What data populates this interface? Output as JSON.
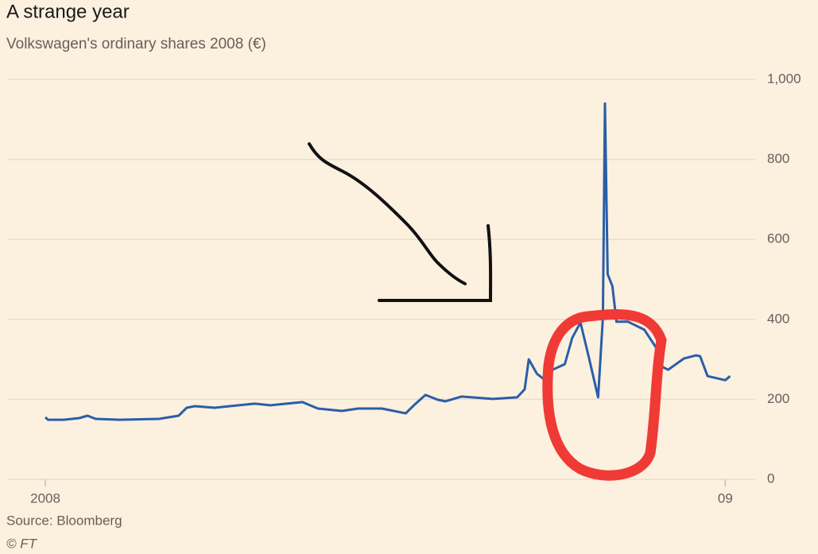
{
  "chart_data": {
    "type": "line",
    "title": "A strange year",
    "subtitle": "Volkswagen's ordinary shares 2008 (€)",
    "source": "Source: Bloomberg",
    "credit": "© FT",
    "x": [
      2008.0,
      2008.004,
      2008.027,
      2008.05,
      2008.062,
      2008.074,
      2008.109,
      2008.167,
      2008.196,
      2008.208,
      2008.22,
      2008.249,
      2008.284,
      2008.308,
      2008.331,
      2008.378,
      2008.401,
      2008.436,
      2008.46,
      2008.495,
      2008.53,
      2008.542,
      2008.559,
      2008.577,
      2008.588,
      2008.612,
      2008.658,
      2008.694,
      2008.705,
      2008.711,
      2008.723,
      2008.735,
      2008.746,
      2008.764,
      2008.775,
      2008.787,
      2008.799,
      2008.813,
      2008.82,
      2008.823,
      2008.827,
      2008.834,
      2008.84,
      2008.857,
      2008.881,
      2008.898,
      2008.904,
      2008.916,
      2008.939,
      2008.957,
      2008.963,
      2008.974,
      2009.0,
      2009.007
    ],
    "series": [
      {
        "color": "#2a5ea8",
        "values": [
          155,
          149,
          149,
          153,
          159,
          151,
          149,
          151,
          159,
          179,
          183,
          179,
          185,
          189,
          185,
          193,
          177,
          171,
          177,
          177,
          165,
          185,
          211,
          199,
          195,
          207,
          201,
          205,
          225,
          300,
          264,
          248,
          274,
          288,
          354,
          392,
          308,
          205,
          404,
          940,
          513,
          483,
          394,
          394,
          374,
          330,
          284,
          274,
          302,
          310,
          308,
          258,
          248,
          258
        ]
      }
    ],
    "xlim": [
      2007.945,
      2009.044
    ],
    "xticks": [
      2008,
      {
        "value": 2009,
        "label": "09"
      }
    ],
    "ylim": [
      0,
      1000
    ],
    "yticks": [
      0,
      200,
      400,
      600,
      800,
      {
        "value": 1000,
        "label": "1,000"
      }
    ],
    "grid": true
  }
}
